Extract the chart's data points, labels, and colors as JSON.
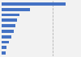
{
  "values": [
    238,
    105,
    66,
    57,
    50,
    44,
    35,
    26,
    18,
    14
  ],
  "bar_color": "#4472c4",
  "background_color": "#f2f2f2",
  "plot_bg_color": "#f2f2f2",
  "bar_height": 0.55,
  "xlim": [
    0,
    290
  ],
  "dashed_line_x": 190
}
